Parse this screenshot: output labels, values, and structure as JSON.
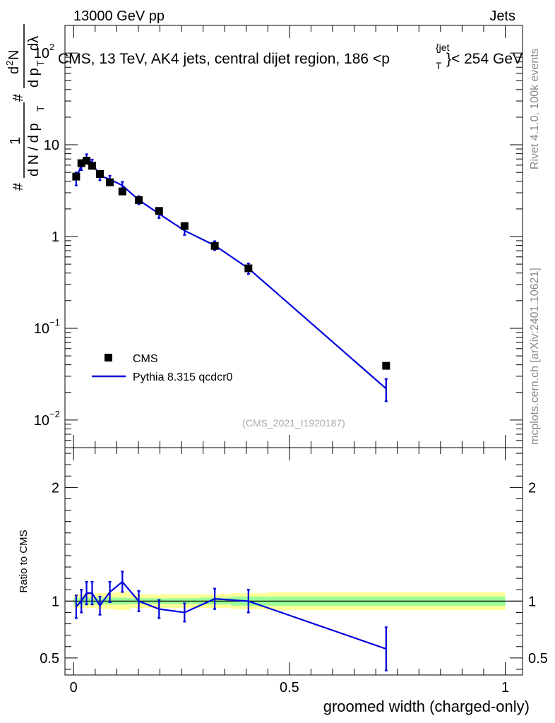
{
  "header": {
    "left": "13000 GeV pp",
    "right": "Jets",
    "source_tag": "(CMS_2021_I1920187)",
    "side_top": "Rivet 4.1.0,  100k events",
    "side_bottom": "mcplots.cern.ch [arXiv:2401.10621]"
  },
  "colors": {
    "mc": "#0000dd",
    "data": "#000000",
    "band_inner": "#99ff99",
    "band_outer": "#ffff99"
  },
  "chart_data": [
    {
      "type": "scatter",
      "title": "CMS, 13 TeV, AK4 jets, central dijet region, 186 <p_T^{jet}< 254 GeV",
      "title_parts": {
        "main": "CMS, 13 TeV, AK4 jets, central dijet region, 186 <p",
        "sup": "{jet",
        "sub": "T",
        "end": "}< 254 GeV"
      },
      "ylabel": "1/(dN/dp_T) d^2N/dp_T dλ",
      "ylabel_parts": {
        "hash": "#",
        "one": "1",
        "den": "d N / d p",
        "T": "T",
        "num": "d",
        "two": "2",
        "N": "N",
        "den2": "d p",
        "lam": "dλ"
      },
      "yscale": "log",
      "ylim": [
        0.005,
        200
      ],
      "xlim": [
        -0.02,
        1.04
      ],
      "ytick_labels": [
        {
          "value": 0.01,
          "base": "10",
          "exp": "−2"
        },
        {
          "value": 0.1,
          "base": "10",
          "exp": "−1"
        },
        {
          "value": 1,
          "text": "1"
        },
        {
          "value": 10,
          "text": "10"
        },
        {
          "value": 100,
          "base": "10",
          "exp": "2"
        }
      ],
      "legend": [
        {
          "label": "CMS",
          "marker": "square"
        },
        {
          "label": "Pythia 8.315 qcdcr0",
          "marker": "line"
        }
      ],
      "legend_position": "bottom-left",
      "series": [
        {
          "name": "CMS",
          "x": [
            0.006,
            0.018,
            0.03,
            0.043,
            0.061,
            0.084,
            0.113,
            0.151,
            0.198,
            0.257,
            0.327,
            0.405,
            0.724
          ],
          "y": [
            4.5,
            6.3,
            6.7,
            5.9,
            4.8,
            3.9,
            3.1,
            2.5,
            1.9,
            1.3,
            0.79,
            0.45,
            0.039
          ]
        },
        {
          "name": "Pythia 8.315 qcdcr0",
          "x": [
            0.006,
            0.018,
            0.03,
            0.043,
            0.061,
            0.084,
            0.113,
            0.151,
            0.198,
            0.257,
            0.327,
            0.405,
            0.724
          ],
          "y": [
            4.3,
            6.0,
            7.2,
            6.3,
            4.6,
            4.2,
            3.6,
            2.5,
            1.77,
            1.16,
            0.8,
            0.45,
            0.022
          ],
          "err": [
            0.7,
            0.7,
            0.7,
            0.6,
            0.5,
            0.4,
            0.35,
            0.25,
            0.18,
            0.12,
            0.09,
            0.06,
            0.006
          ]
        }
      ]
    },
    {
      "type": "line",
      "ylabel": "Ratio to CMS",
      "xlabel": "groomed width (charged-only)",
      "yscale": "linear",
      "ylim": [
        0.35,
        2.35
      ],
      "xlim": [
        -0.02,
        1.04
      ],
      "xtick_labels": [
        {
          "value": 0,
          "text": "0"
        },
        {
          "value": 0.5,
          "text": "0.5"
        },
        {
          "value": 1,
          "text": "1"
        }
      ],
      "ytick_labels": [
        {
          "value": 0.5,
          "text": "0.5"
        },
        {
          "value": 1,
          "text": "1"
        },
        {
          "value": 2,
          "text": "2"
        }
      ],
      "bands": {
        "edges": [
          0,
          0.012,
          0.024,
          0.036,
          0.05,
          0.072,
          0.096,
          0.13,
          0.172,
          0.224,
          0.29,
          0.364,
          0.448,
          1.0
        ],
        "inner": [
          0.03,
          0.03,
          0.03,
          0.03,
          0.03,
          0.03,
          0.03,
          0.025,
          0.025,
          0.025,
          0.03,
          0.04,
          0.04
        ],
        "outer": [
          0.06,
          0.06,
          0.06,
          0.06,
          0.07,
          0.07,
          0.08,
          0.06,
          0.06,
          0.06,
          0.06,
          0.07,
          0.08
        ]
      },
      "series": [
        {
          "name": "Pythia 8.315 qcdcr0",
          "x": [
            0.006,
            0.018,
            0.03,
            0.043,
            0.061,
            0.084,
            0.113,
            0.151,
            0.198,
            0.257,
            0.327,
            0.405,
            0.724
          ],
          "y": [
            0.95,
            1.0,
            1.07,
            1.07,
            0.96,
            1.08,
            1.17,
            1.0,
            0.93,
            0.9,
            1.02,
            1.0,
            0.58
          ],
          "err": [
            0.1,
            0.1,
            0.1,
            0.1,
            0.08,
            0.09,
            0.09,
            0.09,
            0.08,
            0.08,
            0.09,
            0.1,
            0.19
          ]
        }
      ]
    }
  ]
}
